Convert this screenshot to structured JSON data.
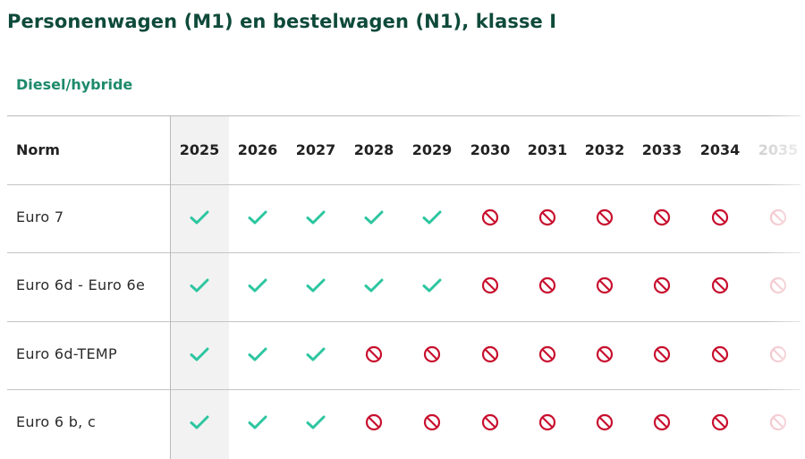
{
  "page": {
    "title": "Personenwagen (M1) en bestelwagen (N1), klasse I",
    "subtitle": "Diesel/hybride"
  },
  "table": {
    "norm_header": "Norm",
    "highlighted_year": "2025",
    "years": [
      "2025",
      "2026",
      "2027",
      "2028",
      "2029",
      "2030",
      "2031",
      "2032",
      "2033",
      "2034",
      "2035"
    ],
    "faded_year": "2035",
    "rows": [
      {
        "norm": "Euro 7",
        "status": [
          "allowed",
          "allowed",
          "allowed",
          "allowed",
          "allowed",
          "banned",
          "banned",
          "banned",
          "banned",
          "banned",
          "banned"
        ]
      },
      {
        "norm": "Euro 6d - Euro 6e",
        "status": [
          "allowed",
          "allowed",
          "allowed",
          "allowed",
          "allowed",
          "banned",
          "banned",
          "banned",
          "banned",
          "banned",
          "banned"
        ]
      },
      {
        "norm": "Euro 6d-TEMP",
        "status": [
          "allowed",
          "allowed",
          "allowed",
          "banned",
          "banned",
          "banned",
          "banned",
          "banned",
          "banned",
          "banned",
          "banned"
        ]
      },
      {
        "norm": "Euro 6 b, c",
        "status": [
          "allowed",
          "allowed",
          "allowed",
          "banned",
          "banned",
          "banned",
          "banned",
          "banned",
          "banned",
          "banned",
          "banned"
        ]
      }
    ]
  },
  "icons": {
    "allowed": "check-icon",
    "banned": "prohibited-icon"
  },
  "colors": {
    "title": "#0e4a3a",
    "subtitle": "#1d8a6c",
    "check": "#2cc6a0",
    "banned": "#c8102e"
  }
}
